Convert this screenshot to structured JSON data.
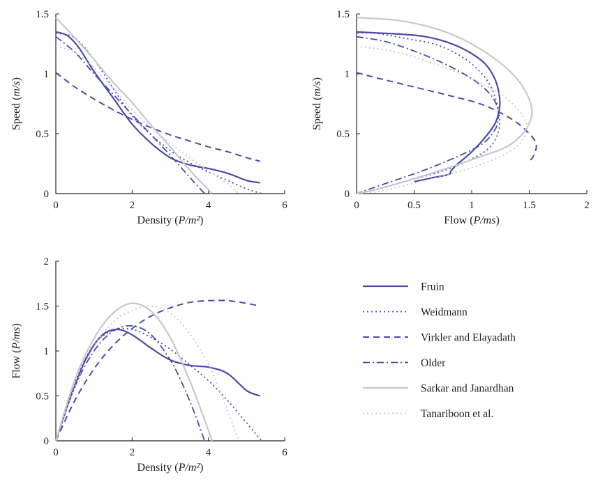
{
  "legend": [
    {
      "name": "Fruin",
      "color": "#4a4aae",
      "dash": "",
      "width": 2.2
    },
    {
      "name": "Weidmann",
      "color": "#4a4aae",
      "dash": "2 4",
      "width": 1.8
    },
    {
      "name": "Virkler and Elayadath",
      "color": "#4a4aae",
      "dash": "9 6",
      "width": 2
    },
    {
      "name": "Older",
      "color": "#4a4aae",
      "dash": "10 4 2 4",
      "width": 1.8
    },
    {
      "name": "Sarkar and Janardhan",
      "color": "#c8c8cc",
      "dash": "",
      "width": 2.2
    },
    {
      "name": "Tanariboon et al.",
      "color": "#c8c8cc",
      "dash": "2 4",
      "width": 1.8
    }
  ],
  "chart_data": [
    {
      "type": "line",
      "panel": "speed-density",
      "xlabel": "Density (P/m²)",
      "ylabel": "Speed (m/s)",
      "xlim": [
        0,
        6
      ],
      "ylim": [
        0,
        1.5
      ],
      "xticks": [
        "0",
        "2",
        "4",
        "6"
      ],
      "yticks": [
        "0",
        "0.5",
        "1",
        "1.5"
      ],
      "series": [
        {
          "name": "Fruin",
          "x": [
            0,
            0.3,
            0.6,
            1.0,
            1.5,
            2.0,
            2.5,
            3.0,
            3.5,
            4.0,
            4.5,
            5.0,
            5.35
          ],
          "y": [
            1.35,
            1.32,
            1.22,
            1.02,
            0.8,
            0.58,
            0.42,
            0.3,
            0.24,
            0.21,
            0.17,
            0.11,
            0.09
          ]
        },
        {
          "name": "Weidmann",
          "x": [
            0,
            0.5,
            1.0,
            1.5,
            2.0,
            2.5,
            3.0,
            3.5,
            4.0,
            4.5,
            5.0,
            5.4
          ],
          "y": [
            1.34,
            1.3,
            1.12,
            0.88,
            0.65,
            0.49,
            0.36,
            0.26,
            0.18,
            0.11,
            0.04,
            0
          ]
        },
        {
          "name": "Virkler and Elayadath",
          "x": [
            0,
            0.5,
            1.0,
            1.5,
            2.0,
            2.5,
            3.0,
            3.5,
            4.0,
            4.5,
            5.0,
            5.35
          ],
          "y": [
            1.01,
            0.89,
            0.79,
            0.7,
            0.62,
            0.55,
            0.49,
            0.44,
            0.39,
            0.35,
            0.3,
            0.27
          ]
        },
        {
          "name": "Older",
          "x": [
            0,
            0.5,
            1.0,
            1.5,
            2.0,
            2.5,
            3.0,
            3.5,
            3.9
          ],
          "y": [
            1.31,
            1.18,
            1.0,
            0.83,
            0.66,
            0.49,
            0.32,
            0.14,
            0
          ]
        },
        {
          "name": "Sarkar and Janardhan",
          "x": [
            0,
            0.5,
            1.0,
            1.5,
            2.0,
            2.5,
            3.0,
            3.5,
            4.1
          ],
          "y": [
            1.47,
            1.3,
            1.12,
            0.93,
            0.76,
            0.57,
            0.39,
            0.2,
            0
          ]
        },
        {
          "name": "Tanariboon et al.",
          "x": [
            0,
            0.5,
            1.0,
            1.5,
            2.0,
            2.5,
            3.0,
            3.5,
            4.0,
            4.5,
            4.8
          ],
          "y": [
            1.23,
            1.18,
            1.05,
            0.88,
            0.7,
            0.55,
            0.42,
            0.3,
            0.19,
            0.08,
            0
          ]
        }
      ]
    },
    {
      "type": "line",
      "panel": "speed-flow",
      "xlabel": "Flow (P/ms)",
      "ylabel": "Speed (m/s)",
      "xlim": [
        0,
        2
      ],
      "ylim": [
        0,
        1.5
      ],
      "xticks": [
        "0",
        "0.5",
        "1",
        "1.5",
        "2"
      ],
      "yticks": [
        "0",
        "0.5",
        "1",
        "1.5"
      ],
      "series": [
        {
          "name": "Fruin",
          "x": [
            0.5,
            0.65,
            0.8,
            0.82,
            0.88,
            0.98,
            1.1,
            1.2,
            1.24,
            1.24,
            1.2,
            1.12,
            0.98,
            0.8,
            0.6,
            0.4,
            0.2,
            0
          ],
          "y": [
            0.1,
            0.13,
            0.16,
            0.19,
            0.25,
            0.33,
            0.45,
            0.58,
            0.7,
            0.82,
            0.96,
            1.08,
            1.18,
            1.26,
            1.31,
            1.33,
            1.34,
            1.35
          ]
        },
        {
          "name": "Weidmann",
          "x": [
            0,
            0.2,
            0.45,
            0.72,
            0.98,
            1.16,
            1.24,
            1.22,
            1.13,
            0.95,
            0.7,
            0.4,
            0.15,
            0
          ],
          "y": [
            0,
            0.04,
            0.11,
            0.18,
            0.28,
            0.39,
            0.55,
            0.75,
            0.95,
            1.12,
            1.24,
            1.3,
            1.34,
            1.34
          ]
        },
        {
          "name": "Virkler and Elayadath",
          "x": [
            0,
            0.2,
            0.5,
            0.8,
            1.1,
            1.35,
            1.5,
            1.56,
            1.54,
            1.5
          ],
          "y": [
            1.01,
            0.96,
            0.89,
            0.82,
            0.74,
            0.62,
            0.5,
            0.41,
            0.32,
            0.27
          ]
        },
        {
          "name": "Older",
          "x": [
            0,
            0.25,
            0.5,
            0.75,
            1.0,
            1.15,
            1.22,
            1.23,
            1.2,
            1.1,
            0.9,
            0.6,
            0.3,
            0
          ],
          "y": [
            1.31,
            1.27,
            1.19,
            1.09,
            0.96,
            0.84,
            0.73,
            0.62,
            0.53,
            0.42,
            0.32,
            0.2,
            0.1,
            0
          ]
        },
        {
          "name": "Sarkar and Janardhan",
          "x": [
            0,
            0.4,
            0.8,
            1.15,
            1.4,
            1.52,
            1.48,
            1.32,
            1.05,
            0.75,
            0.45,
            0.15,
            0
          ],
          "y": [
            1.47,
            1.44,
            1.34,
            1.16,
            0.95,
            0.72,
            0.55,
            0.4,
            0.3,
            0.2,
            0.11,
            0.03,
            0
          ]
        },
        {
          "name": "Tanariboon et al.",
          "x": [
            0,
            0.3,
            0.6,
            0.95,
            1.25,
            1.42,
            1.48,
            1.42,
            1.25,
            0.95,
            0.55,
            0.2,
            0
          ],
          "y": [
            1.23,
            1.19,
            1.11,
            0.98,
            0.83,
            0.68,
            0.55,
            0.42,
            0.31,
            0.2,
            0.1,
            0.02,
            0
          ]
        }
      ]
    },
    {
      "type": "line",
      "panel": "flow-density",
      "xlabel": "Density (P/m²)",
      "ylabel": "Flow (P/ms)",
      "xlim": [
        0,
        6
      ],
      "ylim": [
        0,
        2
      ],
      "xticks": [
        "0",
        "2",
        "4",
        "6"
      ],
      "yticks": [
        "0",
        "0.5",
        "1",
        "1.5",
        "2"
      ],
      "series": [
        {
          "name": "Fruin",
          "x": [
            0,
            0.4,
            0.8,
            1.2,
            1.6,
            2.0,
            2.5,
            3.0,
            3.5,
            4.0,
            4.5,
            5.0,
            5.35
          ],
          "y": [
            0,
            0.5,
            0.92,
            1.17,
            1.24,
            1.18,
            1.03,
            0.9,
            0.84,
            0.82,
            0.75,
            0.56,
            0.5
          ]
        },
        {
          "name": "Weidmann",
          "x": [
            0,
            0.5,
            1.0,
            1.5,
            2.0,
            2.5,
            3.0,
            3.5,
            4.0,
            4.5,
            5.0,
            5.4
          ],
          "y": [
            0,
            0.65,
            1.07,
            1.23,
            1.24,
            1.15,
            1.02,
            0.85,
            0.67,
            0.45,
            0.2,
            0
          ]
        },
        {
          "name": "Virkler and Elayadath",
          "x": [
            0,
            0.5,
            1.0,
            1.5,
            2.0,
            2.5,
            3.0,
            3.5,
            4.0,
            4.5,
            5.0,
            5.35
          ],
          "y": [
            0,
            0.45,
            0.8,
            1.06,
            1.25,
            1.39,
            1.48,
            1.54,
            1.56,
            1.56,
            1.53,
            1.5
          ]
        },
        {
          "name": "Older",
          "x": [
            0,
            0.5,
            1.0,
            1.5,
            2.0,
            2.5,
            3.0,
            3.3,
            3.6,
            3.9
          ],
          "y": [
            0,
            0.6,
            1.0,
            1.22,
            1.28,
            1.18,
            0.9,
            0.65,
            0.35,
            0
          ]
        },
        {
          "name": "Sarkar and Janardhan",
          "x": [
            0,
            0.5,
            1.0,
            1.5,
            2.0,
            2.5,
            3.0,
            3.5,
            3.8,
            4.1
          ],
          "y": [
            0,
            0.68,
            1.14,
            1.42,
            1.53,
            1.44,
            1.15,
            0.68,
            0.35,
            0
          ]
        },
        {
          "name": "Tanariboon et al.",
          "x": [
            0,
            0.5,
            1.0,
            1.5,
            2.0,
            2.5,
            3.0,
            3.5,
            4.0,
            4.4,
            4.8
          ],
          "y": [
            0,
            0.6,
            1.05,
            1.32,
            1.45,
            1.5,
            1.42,
            1.2,
            0.85,
            0.45,
            0
          ]
        }
      ]
    }
  ]
}
